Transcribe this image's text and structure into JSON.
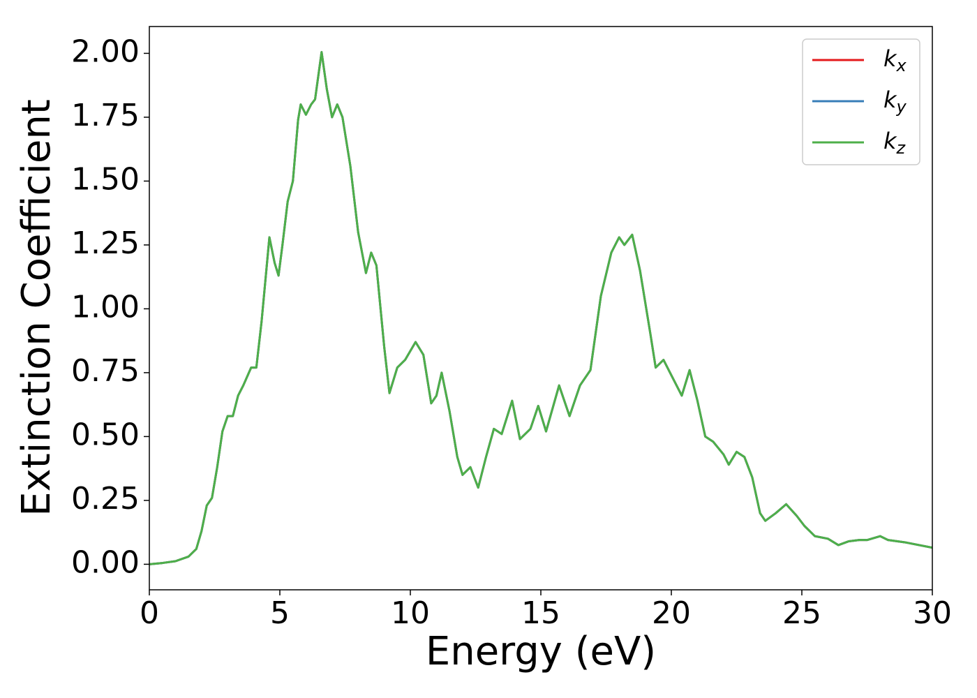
{
  "chart_data": {
    "type": "line",
    "xlabel": "Energy (eV)",
    "ylabel": "Extinction Coefficient",
    "x": [
      0,
      0.5,
      1.0,
      1.5,
      1.8,
      2.0,
      2.2,
      2.4,
      2.6,
      2.8,
      3.0,
      3.2,
      3.4,
      3.6,
      3.9,
      4.1,
      4.3,
      4.6,
      4.8,
      4.95,
      5.1,
      5.3,
      5.5,
      5.7,
      5.8,
      6.0,
      6.2,
      6.35,
      6.6,
      6.8,
      7.0,
      7.2,
      7.4,
      7.7,
      8.0,
      8.3,
      8.5,
      8.7,
      9.0,
      9.2,
      9.5,
      9.8,
      10.2,
      10.5,
      10.8,
      11.0,
      11.2,
      11.5,
      11.8,
      12.0,
      12.3,
      12.6,
      12.9,
      13.2,
      13.5,
      13.9,
      14.2,
      14.6,
      14.9,
      15.2,
      15.7,
      16.1,
      16.5,
      16.9,
      17.3,
      17.7,
      18.0,
      18.2,
      18.5,
      18.8,
      19.2,
      19.4,
      19.7,
      20.0,
      20.4,
      20.7,
      21.0,
      21.3,
      21.6,
      22.0,
      22.2,
      22.5,
      22.8,
      23.1,
      23.4,
      23.6,
      24.0,
      24.4,
      24.8,
      25.1,
      25.5,
      26.0,
      26.4,
      26.8,
      27.2,
      27.5,
      28.0,
      28.3,
      29.0,
      30.0
    ],
    "series": [
      {
        "name": "kx",
        "color": "#e41a1c",
        "values": [
          0,
          0.005,
          0.012,
          0.03,
          0.06,
          0.13,
          0.23,
          0.26,
          0.38,
          0.52,
          0.58,
          0.58,
          0.66,
          0.7,
          0.77,
          0.77,
          0.95,
          1.28,
          1.18,
          1.13,
          1.25,
          1.42,
          1.5,
          1.74,
          1.8,
          1.76,
          1.8,
          1.82,
          2.005,
          1.86,
          1.75,
          1.8,
          1.75,
          1.56,
          1.3,
          1.14,
          1.22,
          1.17,
          0.85,
          0.67,
          0.77,
          0.8,
          0.87,
          0.82,
          0.63,
          0.66,
          0.75,
          0.6,
          0.42,
          0.35,
          0.38,
          0.3,
          0.42,
          0.53,
          0.51,
          0.64,
          0.49,
          0.53,
          0.62,
          0.52,
          0.7,
          0.58,
          0.7,
          0.76,
          1.05,
          1.22,
          1.28,
          1.25,
          1.29,
          1.15,
          0.9,
          0.77,
          0.8,
          0.74,
          0.66,
          0.76,
          0.64,
          0.5,
          0.48,
          0.43,
          0.39,
          0.44,
          0.42,
          0.34,
          0.2,
          0.17,
          0.2,
          0.235,
          0.19,
          0.15,
          0.11,
          0.1,
          0.075,
          0.09,
          0.095,
          0.095,
          0.11,
          0.095,
          0.085,
          0.065
        ]
      },
      {
        "name": "ky",
        "color": "#377eb8",
        "values": [
          0,
          0.005,
          0.012,
          0.03,
          0.06,
          0.13,
          0.23,
          0.26,
          0.38,
          0.52,
          0.58,
          0.58,
          0.66,
          0.7,
          0.77,
          0.77,
          0.95,
          1.28,
          1.18,
          1.13,
          1.25,
          1.42,
          1.5,
          1.74,
          1.8,
          1.76,
          1.8,
          1.82,
          2.005,
          1.86,
          1.75,
          1.8,
          1.75,
          1.56,
          1.3,
          1.14,
          1.22,
          1.17,
          0.85,
          0.67,
          0.77,
          0.8,
          0.87,
          0.82,
          0.63,
          0.66,
          0.75,
          0.6,
          0.42,
          0.35,
          0.38,
          0.3,
          0.42,
          0.53,
          0.51,
          0.64,
          0.49,
          0.53,
          0.62,
          0.52,
          0.7,
          0.58,
          0.7,
          0.76,
          1.05,
          1.22,
          1.28,
          1.25,
          1.29,
          1.15,
          0.9,
          0.77,
          0.8,
          0.74,
          0.66,
          0.76,
          0.64,
          0.5,
          0.48,
          0.43,
          0.39,
          0.44,
          0.42,
          0.34,
          0.2,
          0.17,
          0.2,
          0.235,
          0.19,
          0.15,
          0.11,
          0.1,
          0.075,
          0.09,
          0.095,
          0.095,
          0.11,
          0.095,
          0.085,
          0.065
        ]
      },
      {
        "name": "kz",
        "color": "#4daf4a",
        "values": [
          0,
          0.005,
          0.012,
          0.03,
          0.06,
          0.13,
          0.23,
          0.26,
          0.38,
          0.52,
          0.58,
          0.58,
          0.66,
          0.7,
          0.77,
          0.77,
          0.95,
          1.28,
          1.18,
          1.13,
          1.25,
          1.42,
          1.5,
          1.74,
          1.8,
          1.76,
          1.8,
          1.82,
          2.005,
          1.86,
          1.75,
          1.8,
          1.75,
          1.56,
          1.3,
          1.14,
          1.22,
          1.17,
          0.85,
          0.67,
          0.77,
          0.8,
          0.87,
          0.82,
          0.63,
          0.66,
          0.75,
          0.6,
          0.42,
          0.35,
          0.38,
          0.3,
          0.42,
          0.53,
          0.51,
          0.64,
          0.49,
          0.53,
          0.62,
          0.52,
          0.7,
          0.58,
          0.7,
          0.76,
          1.05,
          1.22,
          1.28,
          1.25,
          1.29,
          1.15,
          0.9,
          0.77,
          0.8,
          0.74,
          0.66,
          0.76,
          0.64,
          0.5,
          0.48,
          0.43,
          0.39,
          0.44,
          0.42,
          0.34,
          0.2,
          0.17,
          0.2,
          0.235,
          0.19,
          0.15,
          0.11,
          0.1,
          0.075,
          0.09,
          0.095,
          0.095,
          0.11,
          0.095,
          0.085,
          0.065
        ]
      }
    ],
    "xlim": [
      0,
      30
    ],
    "xticks": [
      0,
      5,
      10,
      15,
      20,
      25,
      30
    ],
    "ylim": [
      -0.1,
      2.105
    ],
    "yticks": [
      {
        "value": 0,
        "label": "0.00"
      },
      {
        "value": 0.25,
        "label": "0.25"
      },
      {
        "value": 0.5,
        "label": "0.50"
      },
      {
        "value": 0.75,
        "label": "0.75"
      },
      {
        "value": 1,
        "label": "1.00"
      },
      {
        "value": 1.25,
        "label": "1.25"
      },
      {
        "value": 1.5,
        "label": "1.50"
      },
      {
        "value": 1.75,
        "label": "1.75"
      },
      {
        "value": 2,
        "label": "2.00"
      }
    ],
    "grid": false,
    "legend": "upper right"
  }
}
